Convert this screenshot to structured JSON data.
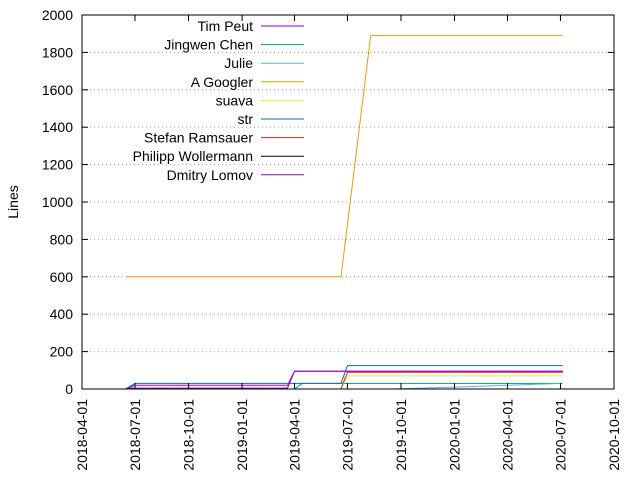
{
  "chart_data": {
    "type": "line",
    "title": "",
    "xlabel": "",
    "ylabel": "Lines",
    "ylim": [
      0,
      2000
    ],
    "xlim": [
      "2018-04-01",
      "2020-10-01"
    ],
    "y_ticks": [
      0,
      200,
      400,
      600,
      800,
      1000,
      1200,
      1400,
      1600,
      1800,
      2000
    ],
    "x_ticks": [
      "2018-04-01",
      "2018-07-01",
      "2018-10-01",
      "2019-01-01",
      "2019-04-01",
      "2019-07-01",
      "2019-10-01",
      "2020-01-01",
      "2020-04-01",
      "2020-07-01",
      "2020-10-01"
    ],
    "grid": "horizontal dotted",
    "legend_position": "top-left",
    "series": [
      {
        "name": "Tim Peut",
        "color": "#9400d3",
        "points": [
          [
            "2018-06-15",
            0
          ],
          [
            "2018-06-25",
            5
          ],
          [
            "2019-03-20",
            5
          ],
          [
            "2019-04-01",
            95
          ],
          [
            "2020-07-05",
            95
          ]
        ]
      },
      {
        "name": "Jingwen Chen",
        "color": "#009e73",
        "points": [
          [
            "2018-06-15",
            0
          ],
          [
            "2019-04-01",
            0
          ],
          [
            "2019-04-15",
            30
          ],
          [
            "2020-07-05",
            30
          ]
        ]
      },
      {
        "name": "Julie",
        "color": "#56b4e9",
        "points": [
          [
            "2018-06-15",
            0
          ],
          [
            "2019-09-15",
            0
          ],
          [
            "2020-01-01",
            10
          ],
          [
            "2020-04-01",
            20
          ],
          [
            "2020-07-05",
            30
          ]
        ]
      },
      {
        "name": "A Googler",
        "color": "#e69f00",
        "points": [
          [
            "2018-06-15",
            600
          ],
          [
            "2019-06-20",
            600
          ],
          [
            "2019-08-10",
            1890
          ],
          [
            "2020-07-05",
            1890
          ]
        ]
      },
      {
        "name": "suava",
        "color": "#f0e442",
        "points": [
          [
            "2018-06-15",
            0
          ],
          [
            "2019-06-20",
            0
          ],
          [
            "2019-07-01",
            70
          ],
          [
            "2020-07-05",
            70
          ]
        ]
      },
      {
        "name": "str",
        "color": "#0072b2",
        "points": [
          [
            "2018-06-15",
            0
          ],
          [
            "2018-07-01",
            30
          ],
          [
            "2019-06-20",
            30
          ],
          [
            "2019-07-01",
            125
          ],
          [
            "2020-07-05",
            125
          ]
        ]
      },
      {
        "name": "Stefan Ramsauer",
        "color": "#e51e10",
        "points": [
          [
            "2018-06-15",
            0
          ],
          [
            "2019-06-20",
            0
          ],
          [
            "2019-07-01",
            90
          ],
          [
            "2020-07-05",
            90
          ]
        ]
      },
      {
        "name": "Philipp Wollermann",
        "color": "#000000",
        "points": [
          [
            "2018-06-15",
            0
          ],
          [
            "2020-07-05",
            0
          ]
        ]
      },
      {
        "name": "Dmitry Lomov",
        "color": "#9400d3",
        "points": [
          [
            "2018-06-15",
            0
          ],
          [
            "2018-07-01",
            20
          ],
          [
            "2019-03-20",
            20
          ],
          [
            "2019-04-01",
            95
          ],
          [
            "2020-07-05",
            95
          ]
        ]
      }
    ]
  }
}
